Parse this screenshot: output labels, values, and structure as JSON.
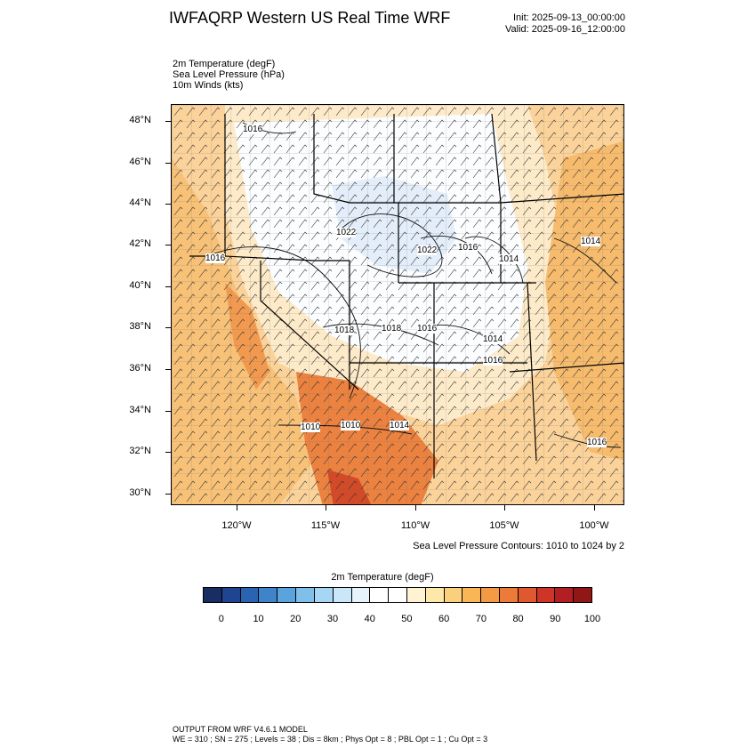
{
  "title": "IWFAQRP Western US Real Time WRF",
  "init_text": "Init: 2025-09-13_00:00:00",
  "valid_text": "Valid: 2025-09-16_12:00:00",
  "fields": [
    "2m Temperature   (degF)",
    "Sea Level Pressure   (hPa)",
    "10m Winds   (kts)"
  ],
  "map": {
    "lat_labels": [
      "48°N",
      "46°N",
      "44°N",
      "42°N",
      "40°N",
      "38°N",
      "36°N",
      "34°N",
      "32°N",
      "30°N"
    ],
    "lon_labels": [
      "120°W",
      "115°W",
      "110°W",
      "105°W",
      "100°W"
    ],
    "isobar_labels": [
      "1016",
      "1016",
      "1022",
      "1022",
      "1016",
      "1014",
      "1014",
      "1018",
      "1018",
      "1016",
      "1014",
      "1016",
      "1010",
      "1010",
      "1014",
      "1016"
    ],
    "contour_note": "Sea Level Pressure Contours: 1010 to 1024 by 2",
    "colors": {
      "cold": "#e8f1fb",
      "cool": "#fbfdff",
      "mild": "#fdebc2",
      "warm": "#f7c77d",
      "hot": "#f2a85c",
      "very_hot": "#e86f36",
      "extreme": "#d44025"
    }
  },
  "colorbar": {
    "title": "2m Temperature  (degF)",
    "colors": [
      "#1a2d63",
      "#1f4591",
      "#2b63b3",
      "#3f84cb",
      "#5aa3dd",
      "#7fbfea",
      "#a6d6f3",
      "#c9e7f8",
      "#e6f3fb",
      "#ffffff",
      "#ffffff",
      "#fff3d1",
      "#fde7a9",
      "#fbd07c",
      "#f8b656",
      "#f39a44",
      "#ec7a38",
      "#e05830",
      "#ce3427",
      "#b21e22",
      "#911616"
    ],
    "labels": [
      "0",
      "10",
      "20",
      "30",
      "40",
      "50",
      "60",
      "70",
      "80",
      "90",
      "100"
    ]
  },
  "footer": {
    "line1": "OUTPUT FROM WRF V4.6.1 MODEL",
    "line2": "WE = 310 ; SN = 275 ; Levels = 38 ; Dis = 8km ; Phys Opt = 8 ; PBL Opt = 1 ; Cu Opt = 3"
  }
}
